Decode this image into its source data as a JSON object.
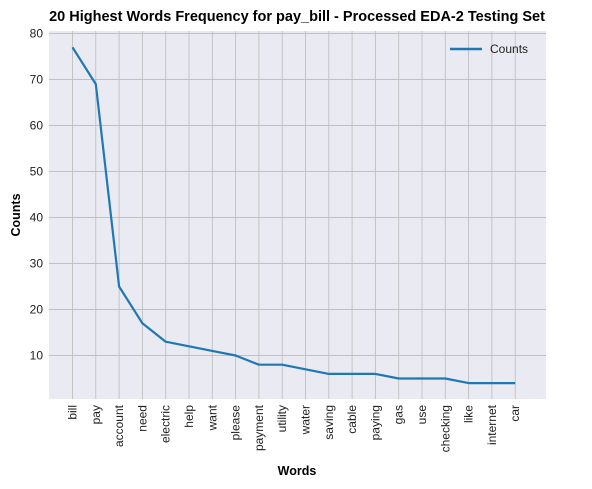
{
  "chart_data": {
    "type": "line",
    "title": "20 Highest Words Frequency for pay_bill - Processed EDA-2 Testing Set",
    "xlabel": "Words",
    "ylabel": "Counts",
    "categories": [
      "bill",
      "pay",
      "account",
      "need",
      "electric",
      "help",
      "want",
      "please",
      "payment",
      "utility",
      "water",
      "saving",
      "cable",
      "paying",
      "gas",
      "use",
      "checking",
      "like",
      "internet",
      "car"
    ],
    "series": [
      {
        "name": "Counts",
        "values": [
          77,
          69,
          25,
          17,
          13,
          12,
          11,
          10,
          8,
          8,
          7,
          6,
          6,
          6,
          5,
          5,
          5,
          4,
          4,
          4
        ]
      }
    ],
    "ylim": [
      0,
      80
    ],
    "yticks": [
      10,
      20,
      30,
      40,
      50,
      60,
      70,
      80
    ],
    "grid": true,
    "legend_position": "top-right"
  },
  "colors": {
    "line": "#1f77b4",
    "plot_background": "#eaeaf2",
    "grid": "#c0c0c0"
  }
}
